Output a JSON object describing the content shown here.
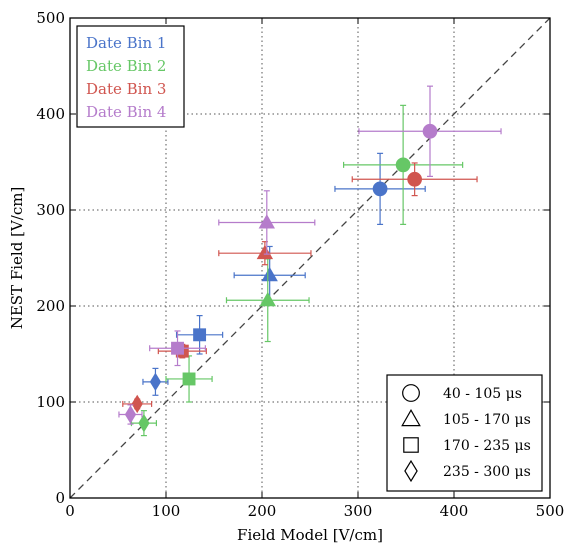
{
  "chart_data": {
    "type": "scatter",
    "xlabel": "Field Model [V/cm]",
    "ylabel": "NEST Field [V/cm]",
    "xlim": [
      0,
      500
    ],
    "ylim": [
      0,
      500
    ],
    "xticks": [
      0,
      100,
      200,
      300,
      400,
      500
    ],
    "yticks": [
      0,
      100,
      200,
      300,
      400,
      500
    ],
    "grid": true,
    "reference_line": "y = x (dashed)",
    "series": [
      {
        "name": "Date Bin 1",
        "color": "#4a74c9",
        "points": [
          {
            "group": "40 - 105 μs",
            "marker": "circle",
            "x": 323,
            "y": 322,
            "xerr": 47,
            "yerr": 37
          },
          {
            "group": "105 - 170 μs",
            "marker": "triangle",
            "x": 208,
            "y": 232,
            "xerr": 37,
            "yerr": 30
          },
          {
            "group": "170 - 235 μs",
            "marker": "square",
            "x": 135,
            "y": 170,
            "xerr": 24,
            "yerr": 20
          },
          {
            "group": "235 - 300 μs",
            "marker": "diamond",
            "x": 89,
            "y": 121,
            "xerr": 13,
            "yerr": 14
          }
        ]
      },
      {
        "name": "Date Bin 2",
        "color": "#66c766",
        "points": [
          {
            "group": "40 - 105 μs",
            "marker": "circle",
            "x": 347,
            "y": 347,
            "xerr": 62,
            "yerr": 62
          },
          {
            "group": "105 - 170 μs",
            "marker": "triangle",
            "x": 206,
            "y": 206,
            "xerr": 43,
            "yerr": 43
          },
          {
            "group": "170 - 235 μs",
            "marker": "square",
            "x": 124,
            "y": 124,
            "xerr": 24,
            "yerr": 24
          },
          {
            "group": "235 - 300 μs",
            "marker": "diamond",
            "x": 77,
            "y": 78,
            "xerr": 13,
            "yerr": 13
          }
        ]
      },
      {
        "name": "Date Bin 3",
        "color": "#d0554f",
        "points": [
          {
            "group": "40 - 105 μs",
            "marker": "circle",
            "x": 359,
            "y": 332,
            "xerr": 65,
            "yerr": 17
          },
          {
            "group": "105 - 170 μs",
            "marker": "triangle",
            "x": 203,
            "y": 255,
            "xerr": 48,
            "yerr": 12
          },
          {
            "group": "170 - 235 μs",
            "marker": "square",
            "x": 117,
            "y": 153,
            "xerr": 25,
            "yerr": 7
          },
          {
            "group": "235 - 300 μs",
            "marker": "diamond",
            "x": 70,
            "y": 98,
            "xerr": 15,
            "yerr": 5
          }
        ]
      },
      {
        "name": "Date Bin 4",
        "color": "#b57ccb",
        "points": [
          {
            "group": "40 - 105 μs",
            "marker": "circle",
            "x": 375,
            "y": 382,
            "xerr": 74,
            "yerr": 47
          },
          {
            "group": "105 - 170 μs",
            "marker": "triangle",
            "x": 205,
            "y": 287,
            "xerr": 50,
            "yerr": 33
          },
          {
            "group": "170 - 235 μs",
            "marker": "square",
            "x": 112,
            "y": 156,
            "xerr": 29,
            "yerr": 18
          },
          {
            "group": "235 - 300 μs",
            "marker": "diamond",
            "x": 63,
            "y": 87,
            "xerr": 12,
            "yerr": 10
          }
        ]
      }
    ],
    "color_legend": {
      "position": "top-left",
      "entries": [
        "Date Bin 1",
        "Date Bin 2",
        "Date Bin 3",
        "Date Bin 4"
      ]
    },
    "marker_legend": {
      "position": "bottom-right",
      "entries": [
        {
          "marker": "circle",
          "label": "40 - 105 μs"
        },
        {
          "marker": "triangle",
          "label": "105 - 170 μs"
        },
        {
          "marker": "square",
          "label": "170 - 235 μs"
        },
        {
          "marker": "diamond",
          "label": "235 - 300 μs"
        }
      ]
    }
  }
}
